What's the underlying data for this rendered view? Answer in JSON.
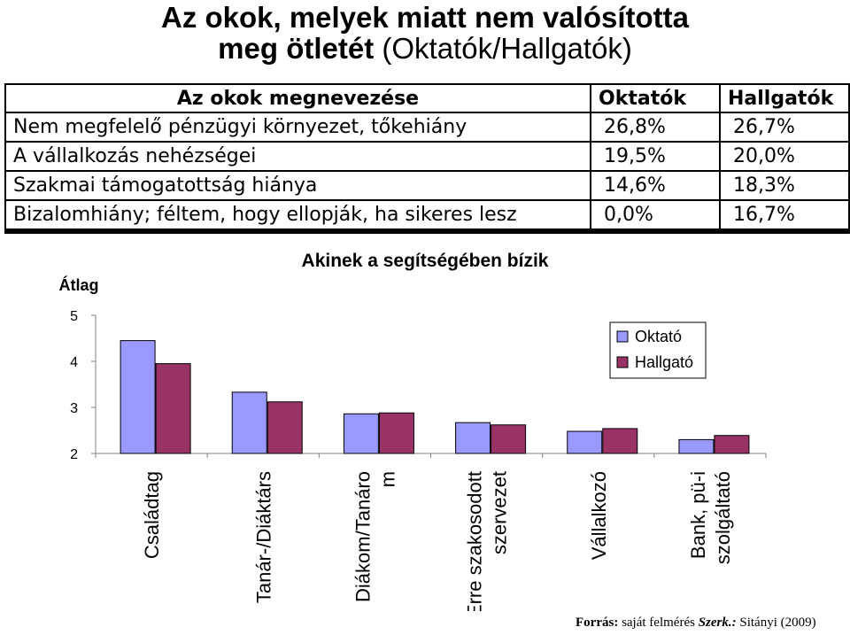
{
  "title": {
    "line1": "Az okok, melyek miatt nem valósította",
    "line2_bold": "meg ötletét",
    "line2_rest": "(Oktatók/Hallgatók)"
  },
  "reasons_table": {
    "headers": [
      "Az okok megnevezése",
      "Oktatók",
      "Hallgatók"
    ],
    "rows": [
      [
        "Nem megfelelő pénzügyi környezet, tőkehiány",
        "26,8%",
        "26,7%"
      ],
      [
        "A vállalkozás nehézségei",
        "19,5%",
        "20,0%"
      ],
      [
        "Szakmai támogatottság hiánya",
        "14,6%",
        "18,3%"
      ],
      [
        "Bizalomhiány; féltem, hogy ellopják, ha sikeres lesz",
        "0,0%",
        "16,7%"
      ]
    ]
  },
  "chart_data": {
    "type": "bar",
    "title": "Akinek a segítségében bízik",
    "ylabel": "Átlag",
    "ylim": [
      2,
      5
    ],
    "yticks": [
      "2",
      "3",
      "4",
      "5"
    ],
    "grid": false,
    "legend_position": "top-right",
    "categories": [
      "Családtag",
      "Tanár-/Diáktárs",
      "Diákom/Tanárom",
      "Erre szakosodott szervezet",
      "Vállalkozó",
      "Bank, pü-i szolgáltató"
    ],
    "category_lines": [
      [
        "Családtag"
      ],
      [
        "Tanár-/Diáktárs"
      ],
      [
        "Diákom/Tanáro",
        "m"
      ],
      [
        "Erre szakosodott",
        "szervezet"
      ],
      [
        "Vállalkozó"
      ],
      [
        "Bank, pü-i",
        "szolgáltató"
      ]
    ],
    "series": [
      {
        "name": "Oktató",
        "color": "#9999ff",
        "values": [
          4.45,
          3.33,
          2.86,
          2.67,
          2.48,
          2.3
        ]
      },
      {
        "name": "Hallgató",
        "color": "#993366",
        "values": [
          3.95,
          3.12,
          2.88,
          2.62,
          2.54,
          2.39
        ]
      }
    ]
  },
  "source": {
    "label": "Forrás:",
    "text1": "saját felmérés",
    "editor_label": "Szerk.:",
    "text2": "Sitányi (2009)"
  }
}
